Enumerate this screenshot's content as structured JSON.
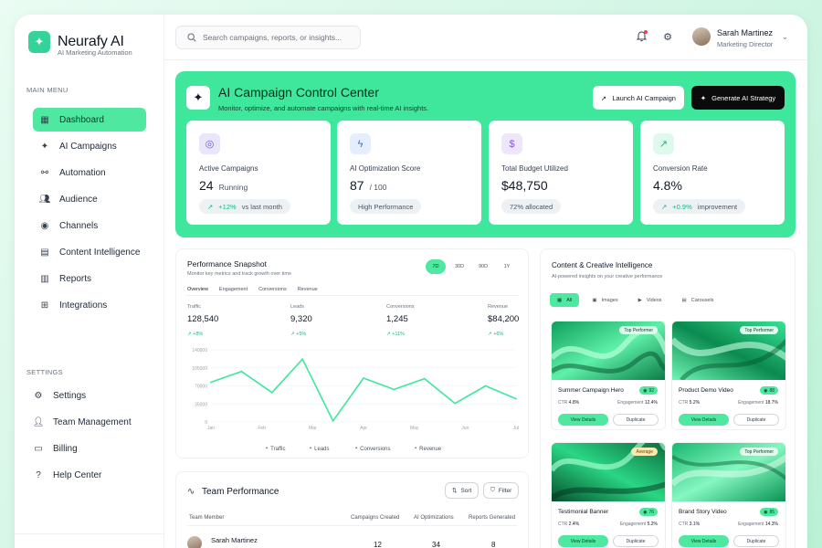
{
  "app": {
    "name": "Neurafy AI",
    "tagline": "AI Marketing Automation"
  },
  "search": {
    "placeholder": "Search campaigns, reports, or insights..."
  },
  "user": {
    "name": "Sarah Martinez",
    "role": "Marketing Director"
  },
  "sidebar": {
    "main_label": "MAIN MENU",
    "main_items": [
      {
        "label": "Dashboard",
        "icon": "grid-icon"
      },
      {
        "label": "AI Campaigns",
        "icon": "sparkle-icon"
      },
      {
        "label": "Automation",
        "icon": "flow-icon"
      },
      {
        "label": "Audience",
        "icon": "users-icon"
      },
      {
        "label": "Channels",
        "icon": "broadcast-icon"
      },
      {
        "label": "Content Intelligence",
        "icon": "document-icon"
      },
      {
        "label": "Reports",
        "icon": "bar-chart-icon"
      },
      {
        "label": "Integrations",
        "icon": "plug-icon"
      }
    ],
    "settings_label": "SETTINGS",
    "settings_items": [
      {
        "label": "Settings",
        "icon": "gear-icon"
      },
      {
        "label": "Team Management",
        "icon": "team-icon"
      },
      {
        "label": "Billing",
        "icon": "card-icon"
      },
      {
        "label": "Help Center",
        "icon": "help-icon"
      }
    ]
  },
  "hero": {
    "title": "AI Campaign Control Center",
    "subtitle": "Monitor, optimize, and automate campaigns with real-time AI insights.",
    "launch_label": "Launch AI Campaign",
    "strategy_label": "Generate AI Strategy",
    "stats": [
      {
        "label": "Active Campaigns",
        "value": "24",
        "unit": "Running",
        "pill_change": "+12%",
        "pill_text": "vs last month",
        "icon": "target-icon",
        "icon_bg": "#e9e6fb",
        "icon_color": "#6d5dd3"
      },
      {
        "label": "AI Optimization Score",
        "value": "87",
        "unit": "/ 100",
        "pill_change": "",
        "pill_text": "High Performance",
        "icon": "bolt-icon",
        "icon_bg": "#e4eefc",
        "icon_color": "#3b6fd8"
      },
      {
        "label": "Total Budget Utilized",
        "value": "$48,750",
        "unit": "",
        "pill_change": "",
        "pill_text": "72% allocated",
        "icon": "dollar-icon",
        "icon_bg": "#eee6fb",
        "icon_color": "#8a5ad6"
      },
      {
        "label": "Conversion Rate",
        "value": "4.8%",
        "unit": "",
        "pill_change": "+0.9%",
        "pill_text": "improvement",
        "icon": "trend-up-icon",
        "icon_bg": "#dff9ec",
        "icon_color": "#10b981"
      }
    ]
  },
  "performance": {
    "title": "Performance Snapshot",
    "subtitle": "Monitor key metrics and track growth over time",
    "periods": [
      "7D",
      "30D",
      "90D",
      "1Y"
    ],
    "active_period": "7D",
    "tabs": [
      "Overview",
      "Engagement",
      "Conversions",
      "Revenue"
    ],
    "active_tab": "Overview",
    "metrics": [
      {
        "label": "Traffic",
        "value": "128,540",
        "change": "+8%"
      },
      {
        "label": "Leads",
        "value": "9,320",
        "change": "+5%"
      },
      {
        "label": "Conversions",
        "value": "1,245",
        "change": "+11%"
      },
      {
        "label": "Revenue",
        "value": "$84,200",
        "change": "+6%"
      }
    ],
    "legend": [
      "Traffic",
      "Leads",
      "Conversions",
      "Revenue"
    ]
  },
  "chart_data": {
    "type": "line",
    "categories": [
      "Jan",
      "Feb",
      "Mar",
      "Apr",
      "May",
      "Jun",
      "Jul"
    ],
    "x": [
      0,
      0.6,
      1.2,
      1.8,
      2.4,
      3.0,
      3.6,
      4.2,
      4.8,
      5.4,
      6.0
    ],
    "series": [
      {
        "name": "Traffic",
        "values": [
          77000,
          98000,
          57000,
          122000,
          2000,
          85000,
          63000,
          84000,
          36000,
          70000,
          45000
        ]
      }
    ],
    "yticks": [
      "0",
      "35000",
      "70000",
      "105000",
      "140000"
    ],
    "ylim": [
      0,
      140000
    ],
    "color": "#3ee79b",
    "grid": true,
    "title": "",
    "xlabel": "",
    "ylabel": ""
  },
  "content": {
    "title": "Content & Creative Intelligence",
    "subtitle": "AI-powered insights on your creative performance",
    "filters": [
      "All",
      "Images",
      "Videos",
      "Carousels"
    ],
    "active_filter": "All",
    "ctr_label": "CTR",
    "engagement_label": "Engagement",
    "view_label": "View Details",
    "dup_label": "Duplicate",
    "tiles": [
      {
        "name": "Summer Campaign Hero",
        "badge": "Top Performer",
        "score": "92",
        "ctr": "4.8%",
        "engagement": "12.4%"
      },
      {
        "name": "Product Demo Video",
        "badge": "Top Performer",
        "score": "88",
        "ctr": "5.2%",
        "engagement": "18.7%"
      },
      {
        "name": "Testimonial Banner",
        "badge": "Average",
        "score": "76",
        "ctr": "2.4%",
        "engagement": "5.2%"
      },
      {
        "name": "Brand Story Video",
        "badge": "Top Performer",
        "score": "85",
        "ctr": "3.1%",
        "engagement": "14.3%"
      }
    ]
  },
  "team": {
    "title": "Team Performance",
    "sort_label": "Sort",
    "filter_label": "Filter",
    "columns": [
      "Team Member",
      "Campaigns Created",
      "AI Optimizations",
      "Reports Generated"
    ],
    "rows": [
      {
        "name": "Sarah Martinez",
        "campaigns": "12",
        "optimizations": "34",
        "reports": "8"
      }
    ]
  }
}
